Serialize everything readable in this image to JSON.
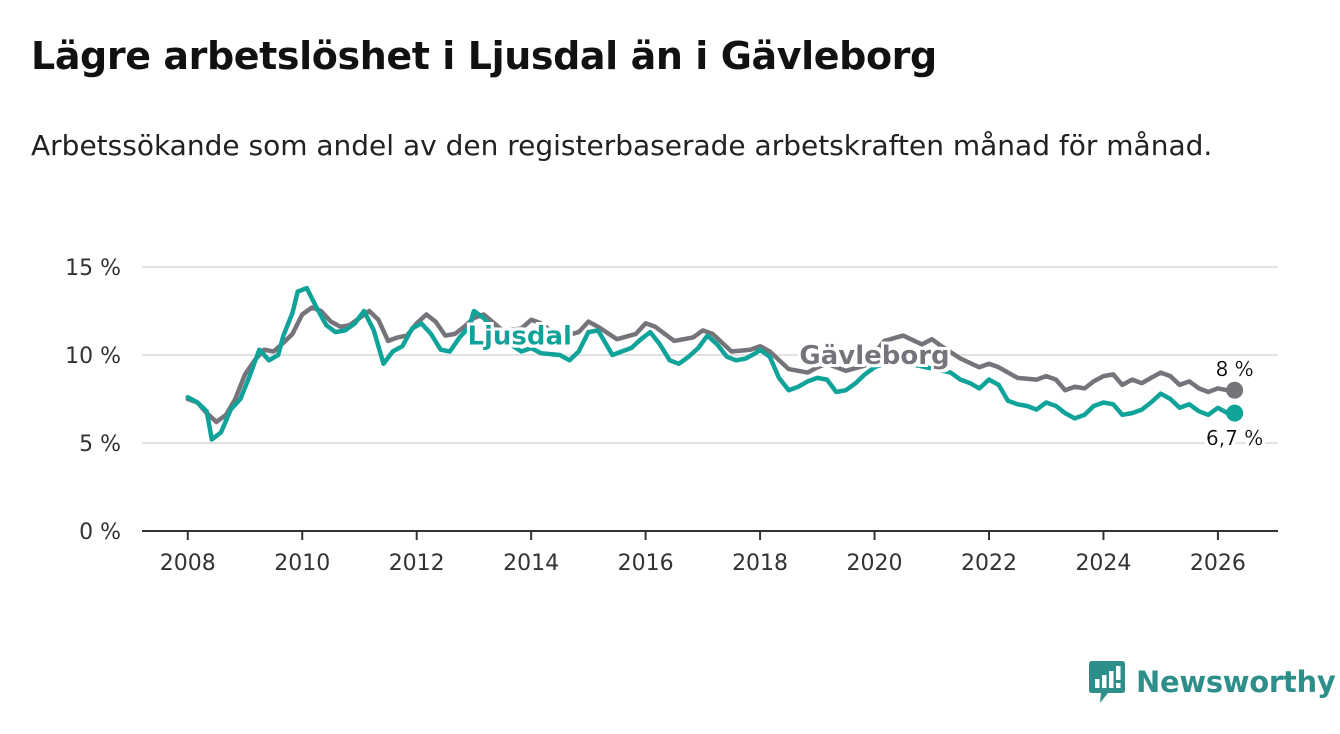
{
  "title": "Lägre arbetslöshet i Ljusdal än i Gävleborg",
  "subtitle": "Arbetssökande som andel av den registerbaserade arbetskraften månad för månad.",
  "brand": "Newsworthy",
  "colors": {
    "ljusdal": "#0fa39a",
    "gavleborg": "#77737b",
    "grid": "#d9d9d9",
    "axis": "#333333",
    "brand": "#2e8f8a"
  },
  "chart_data": {
    "type": "line",
    "title": "Lägre arbetslöshet i Ljusdal än i Gävleborg",
    "xlabel": "",
    "ylabel": "",
    "xlim": [
      2007.2,
      2027.05
    ],
    "ylim": [
      0,
      15
    ],
    "xticks": [
      2008,
      2010,
      2012,
      2014,
      2016,
      2018,
      2020,
      2022,
      2024,
      2026
    ],
    "yticks": [
      0,
      5,
      10,
      15
    ],
    "ytick_labels": [
      "0 %",
      "5 %",
      "10 %",
      "15 %"
    ],
    "grid": true,
    "series": [
      {
        "name": "Gävleborg",
        "label": "Gävleborg",
        "end_label": "8 %",
        "points": [
          [
            2008.0,
            7.5
          ],
          [
            2008.17,
            7.3
          ],
          [
            2008.33,
            6.7
          ],
          [
            2008.5,
            6.2
          ],
          [
            2008.67,
            6.6
          ],
          [
            2008.83,
            7.5
          ],
          [
            2009.0,
            8.9
          ],
          [
            2009.17,
            9.7
          ],
          [
            2009.33,
            10.3
          ],
          [
            2009.5,
            10.2
          ],
          [
            2009.67,
            10.7
          ],
          [
            2009.83,
            11.2
          ],
          [
            2010.0,
            12.3
          ],
          [
            2010.17,
            12.7
          ],
          [
            2010.33,
            12.5
          ],
          [
            2010.5,
            11.9
          ],
          [
            2010.67,
            11.6
          ],
          [
            2010.83,
            11.7
          ],
          [
            2011.0,
            12.1
          ],
          [
            2011.17,
            12.5
          ],
          [
            2011.33,
            12.0
          ],
          [
            2011.5,
            10.8
          ],
          [
            2011.67,
            11.0
          ],
          [
            2011.83,
            11.1
          ],
          [
            2012.0,
            11.8
          ],
          [
            2012.17,
            12.3
          ],
          [
            2012.33,
            11.9
          ],
          [
            2012.5,
            11.1
          ],
          [
            2012.67,
            11.2
          ],
          [
            2012.83,
            11.6
          ],
          [
            2013.0,
            12.1
          ],
          [
            2013.17,
            12.3
          ],
          [
            2013.5,
            11.4
          ],
          [
            2013.83,
            11.5
          ],
          [
            2014.0,
            12.0
          ],
          [
            2014.17,
            11.8
          ],
          [
            2014.5,
            11.0
          ],
          [
            2014.83,
            11.3
          ],
          [
            2015.0,
            11.9
          ],
          [
            2015.17,
            11.6
          ],
          [
            2015.5,
            10.9
          ],
          [
            2015.83,
            11.2
          ],
          [
            2016.0,
            11.8
          ],
          [
            2016.17,
            11.6
          ],
          [
            2016.5,
            10.8
          ],
          [
            2016.83,
            11.0
          ],
          [
            2017.0,
            11.4
          ],
          [
            2017.17,
            11.2
          ],
          [
            2017.5,
            10.2
          ],
          [
            2017.83,
            10.3
          ],
          [
            2018.0,
            10.5
          ],
          [
            2018.17,
            10.2
          ],
          [
            2018.5,
            9.2
          ],
          [
            2018.83,
            9.0
          ],
          [
            2019.0,
            9.3
          ],
          [
            2019.17,
            9.5
          ],
          [
            2019.5,
            9.1
          ],
          [
            2019.83,
            9.4
          ],
          [
            2020.0,
            10.1
          ],
          [
            2020.17,
            10.8
          ],
          [
            2020.5,
            11.1
          ],
          [
            2020.83,
            10.6
          ],
          [
            2021.0,
            10.9
          ],
          [
            2021.17,
            10.5
          ],
          [
            2021.5,
            9.8
          ],
          [
            2021.83,
            9.3
          ],
          [
            2022.0,
            9.5
          ],
          [
            2022.17,
            9.3
          ],
          [
            2022.5,
            8.7
          ],
          [
            2022.83,
            8.6
          ],
          [
            2023.0,
            8.8
          ],
          [
            2023.17,
            8.6
          ],
          [
            2023.33,
            8.0
          ],
          [
            2023.5,
            8.2
          ],
          [
            2023.67,
            8.1
          ],
          [
            2023.83,
            8.5
          ],
          [
            2024.0,
            8.8
          ],
          [
            2024.17,
            8.9
          ],
          [
            2024.33,
            8.3
          ],
          [
            2024.5,
            8.6
          ],
          [
            2024.67,
            8.4
          ],
          [
            2024.83,
            8.7
          ],
          [
            2025.0,
            9.0
          ],
          [
            2025.17,
            8.8
          ],
          [
            2025.33,
            8.3
          ],
          [
            2025.5,
            8.5
          ],
          [
            2025.67,
            8.1
          ],
          [
            2025.83,
            7.9
          ],
          [
            2026.0,
            8.1
          ],
          [
            2026.17,
            8.0
          ]
        ]
      },
      {
        "name": "Ljusdal",
        "label": "Ljusdal",
        "end_label": "6,7 %",
        "points": [
          [
            2008.0,
            7.6
          ],
          [
            2008.17,
            7.3
          ],
          [
            2008.33,
            6.8
          ],
          [
            2008.42,
            5.2
          ],
          [
            2008.58,
            5.6
          ],
          [
            2008.75,
            6.9
          ],
          [
            2008.92,
            7.5
          ],
          [
            2009.08,
            8.8
          ],
          [
            2009.25,
            10.3
          ],
          [
            2009.42,
            9.7
          ],
          [
            2009.58,
            10.0
          ],
          [
            2009.67,
            11.1
          ],
          [
            2009.83,
            12.4
          ],
          [
            2009.92,
            13.6
          ],
          [
            2010.08,
            13.8
          ],
          [
            2010.25,
            12.7
          ],
          [
            2010.42,
            11.7
          ],
          [
            2010.58,
            11.3
          ],
          [
            2010.75,
            11.4
          ],
          [
            2010.92,
            11.8
          ],
          [
            2011.08,
            12.5
          ],
          [
            2011.25,
            11.4
          ],
          [
            2011.42,
            9.5
          ],
          [
            2011.58,
            10.2
          ],
          [
            2011.75,
            10.5
          ],
          [
            2011.92,
            11.5
          ],
          [
            2012.08,
            11.8
          ],
          [
            2012.25,
            11.2
          ],
          [
            2012.42,
            10.3
          ],
          [
            2012.58,
            10.2
          ],
          [
            2012.75,
            11.0
          ],
          [
            2012.92,
            11.6
          ],
          [
            2013.0,
            12.5
          ],
          [
            2013.17,
            12.1
          ],
          [
            2013.5,
            10.9
          ],
          [
            2013.83,
            10.2
          ],
          [
            2014.0,
            10.4
          ],
          [
            2014.17,
            10.1
          ],
          [
            2014.5,
            10.0
          ],
          [
            2014.67,
            9.7
          ],
          [
            2014.83,
            10.2
          ],
          [
            2015.0,
            11.3
          ],
          [
            2015.17,
            11.4
          ],
          [
            2015.42,
            10.0
          ],
          [
            2015.58,
            10.2
          ],
          [
            2015.75,
            10.4
          ],
          [
            2015.92,
            10.9
          ],
          [
            2016.08,
            11.3
          ],
          [
            2016.25,
            10.6
          ],
          [
            2016.42,
            9.7
          ],
          [
            2016.58,
            9.5
          ],
          [
            2016.75,
            9.9
          ],
          [
            2016.92,
            10.4
          ],
          [
            2017.08,
            11.1
          ],
          [
            2017.25,
            10.6
          ],
          [
            2017.42,
            9.9
          ],
          [
            2017.58,
            9.7
          ],
          [
            2017.75,
            9.8
          ],
          [
            2017.92,
            10.1
          ],
          [
            2018.0,
            10.3
          ],
          [
            2018.17,
            9.9
          ],
          [
            2018.33,
            8.7
          ],
          [
            2018.5,
            8.0
          ],
          [
            2018.67,
            8.2
          ],
          [
            2018.83,
            8.5
          ],
          [
            2019.0,
            8.7
          ],
          [
            2019.17,
            8.6
          ],
          [
            2019.33,
            7.9
          ],
          [
            2019.5,
            8.0
          ],
          [
            2019.67,
            8.4
          ],
          [
            2019.83,
            8.9
          ],
          [
            2020.0,
            9.3
          ],
          [
            2020.17,
            9.5
          ],
          [
            2020.33,
            9.7
          ],
          [
            2021.33,
            9.0
          ],
          [
            2021.5,
            8.6
          ],
          [
            2021.67,
            8.4
          ],
          [
            2021.83,
            8.1
          ],
          [
            2022.0,
            8.6
          ],
          [
            2022.17,
            8.3
          ],
          [
            2022.33,
            7.4
          ],
          [
            2022.5,
            7.2
          ],
          [
            2022.67,
            7.1
          ],
          [
            2022.83,
            6.9
          ],
          [
            2023.0,
            7.3
          ],
          [
            2023.17,
            7.1
          ],
          [
            2023.33,
            6.7
          ],
          [
            2023.5,
            6.4
          ],
          [
            2023.67,
            6.6
          ],
          [
            2023.83,
            7.1
          ],
          [
            2024.0,
            7.3
          ],
          [
            2024.17,
            7.2
          ],
          [
            2024.33,
            6.6
          ],
          [
            2024.5,
            6.7
          ],
          [
            2024.67,
            6.9
          ],
          [
            2024.83,
            7.3
          ],
          [
            2025.0,
            7.8
          ],
          [
            2025.17,
            7.5
          ],
          [
            2025.33,
            7.0
          ],
          [
            2025.5,
            7.2
          ],
          [
            2025.67,
            6.8
          ],
          [
            2025.83,
            6.6
          ],
          [
            2026.0,
            7.0
          ],
          [
            2026.17,
            6.7
          ]
        ]
      }
    ]
  }
}
